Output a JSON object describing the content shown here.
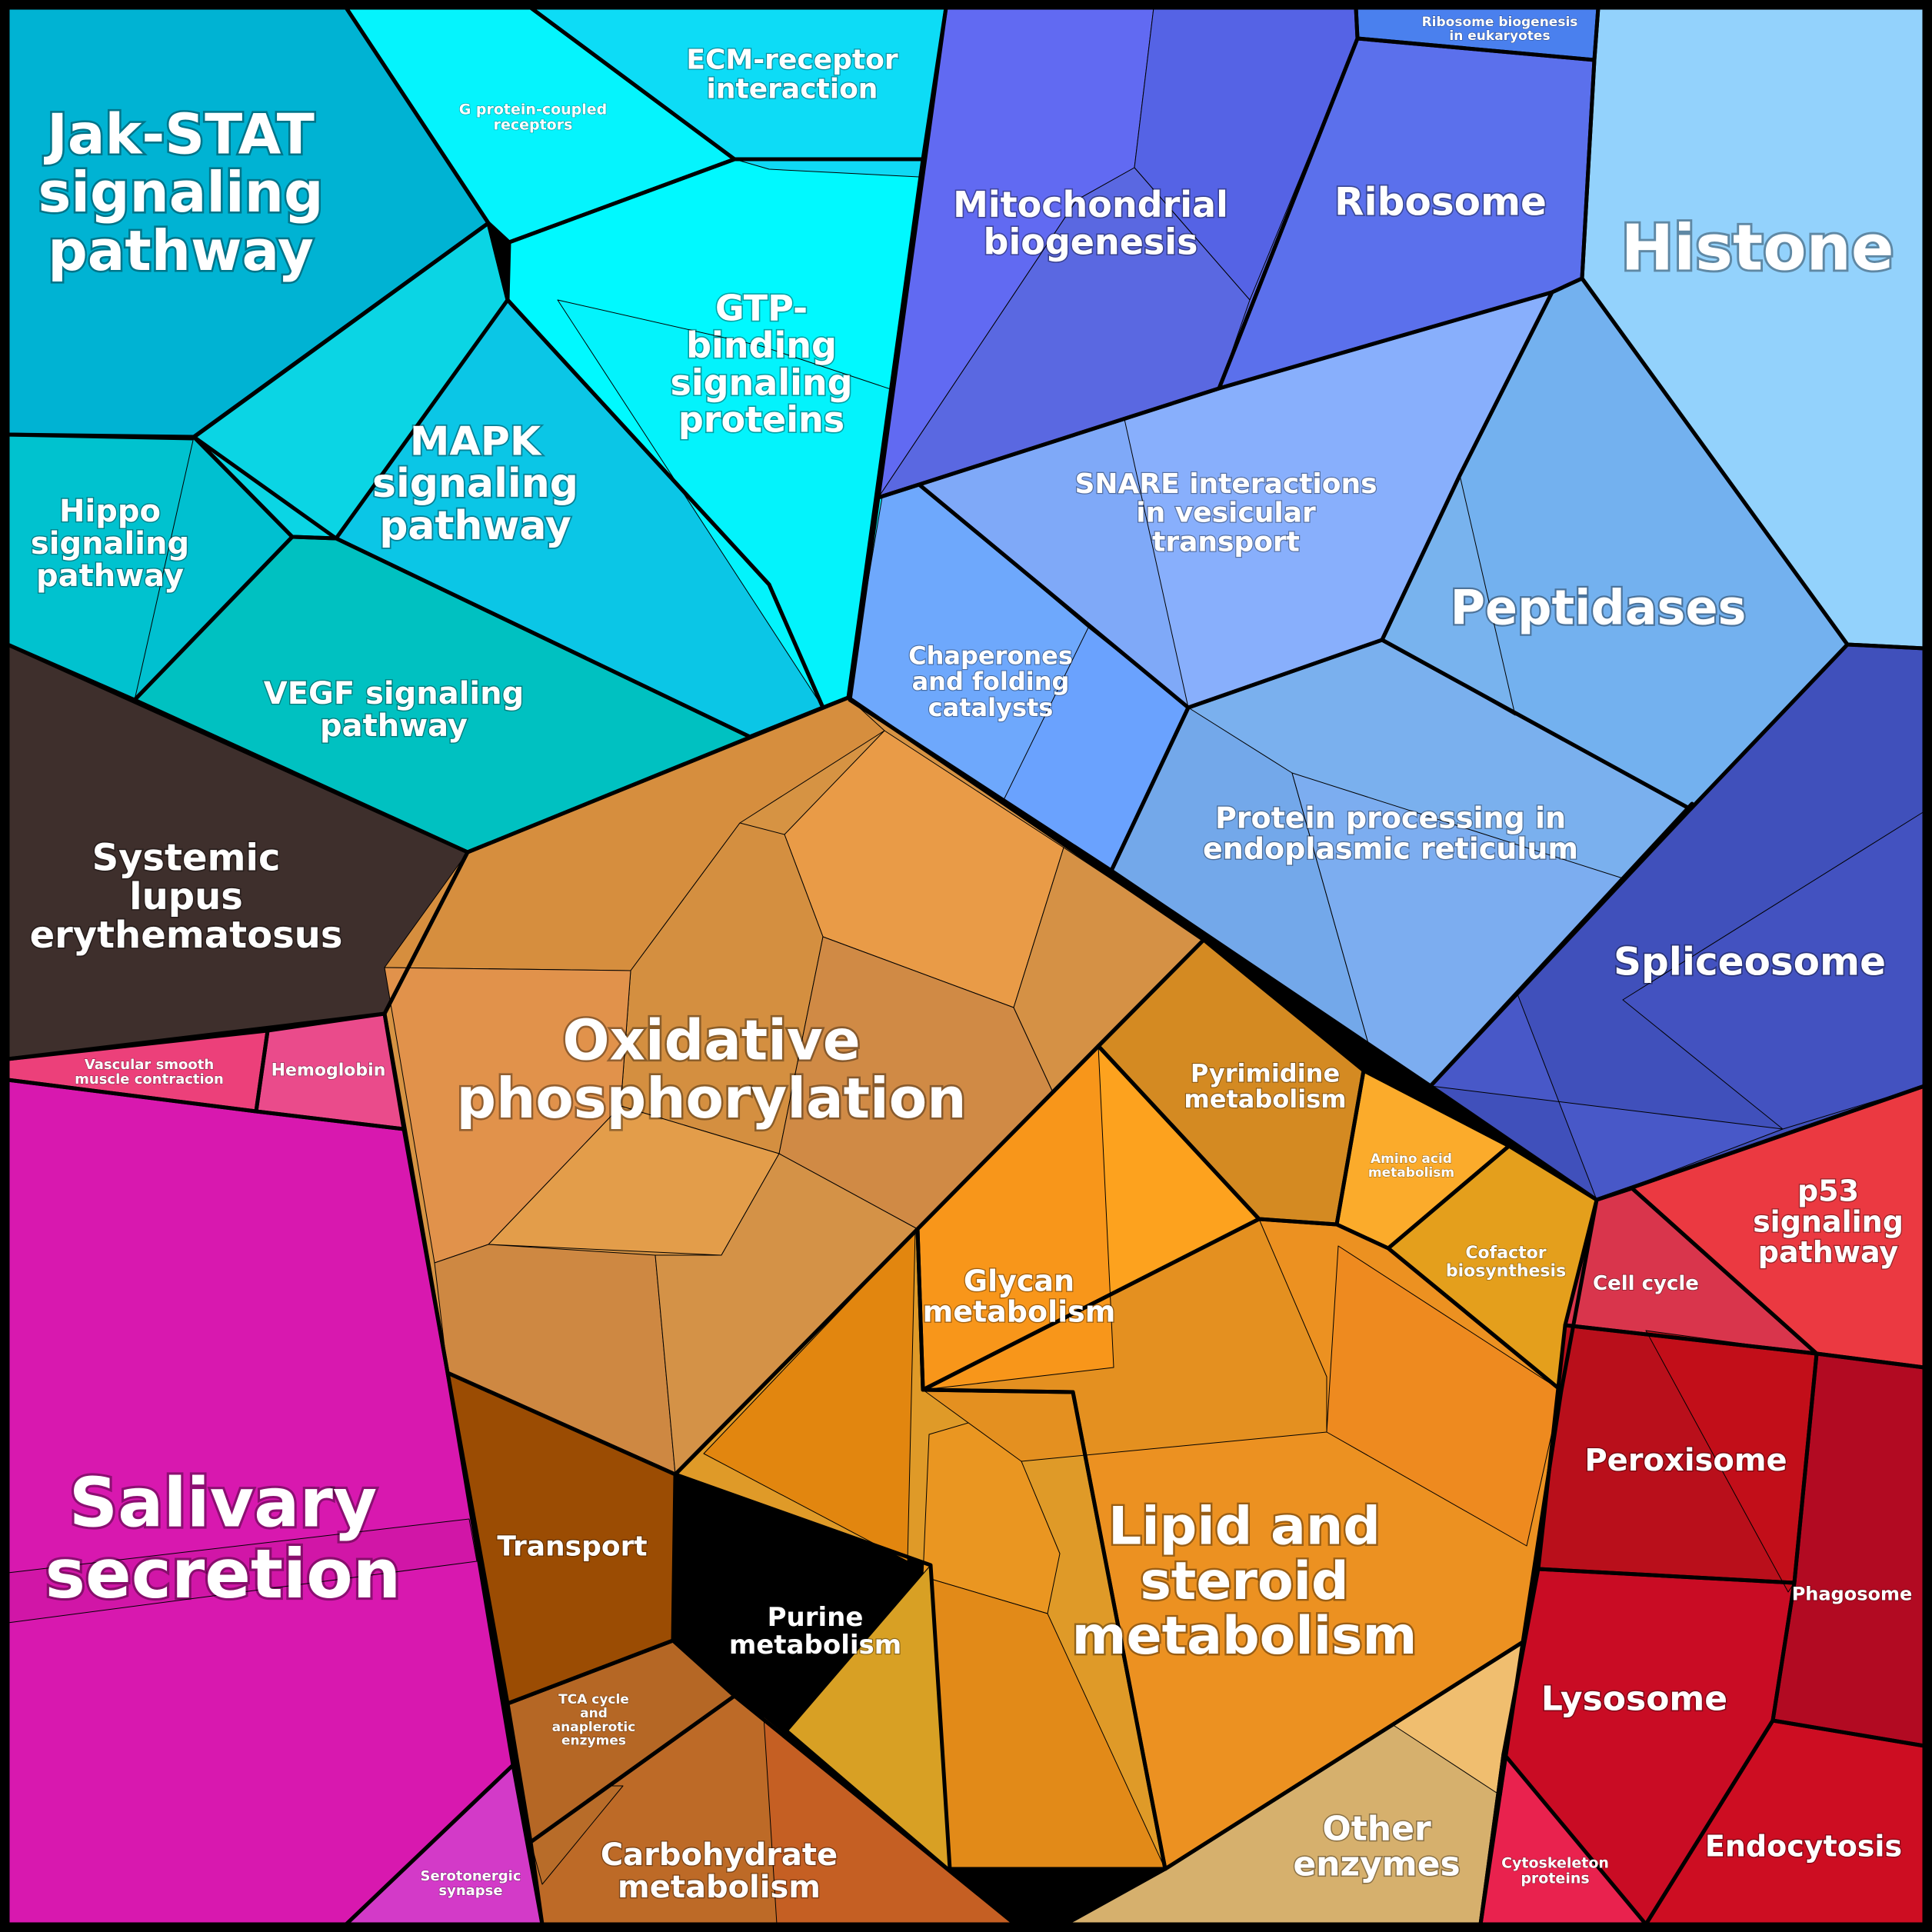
{
  "cells": [
    {
      "name": "jak-stat",
      "label": [
        "Jak-STAT",
        "signaling",
        "pathway"
      ],
      "color": "#00b3d3"
    },
    {
      "name": "g-protein",
      "label": [
        "G protein-coupled",
        "receptors"
      ],
      "color": "#05f4fd"
    },
    {
      "name": "ecm-receptor",
      "label": [
        "ECM-receptor",
        "interaction"
      ],
      "color": "#0ddcf6"
    },
    {
      "name": "gtp-binding",
      "label": [
        "GTP-",
        "binding",
        "signaling",
        "proteins"
      ],
      "color": "#00f9ff"
    },
    {
      "name": "mapk",
      "label": [
        "MAPK",
        "signaling",
        "pathway"
      ],
      "color": "#0bc6e6"
    },
    {
      "name": "mapk-left",
      "label": [],
      "color": "#0bd5e4"
    },
    {
      "name": "hippo",
      "label": [
        "Hippo",
        "signaling",
        "pathway"
      ],
      "color": "#00c2cf"
    },
    {
      "name": "vegf",
      "label": [
        "VEGF signaling",
        "pathway"
      ],
      "color": "#00c1c1"
    },
    {
      "name": "lupus",
      "label": [
        "Systemic",
        "lupus",
        "erythematosus"
      ],
      "color": "#3e2f2c"
    },
    {
      "name": "vascular",
      "label": [
        "Vascular smooth",
        "muscle contraction"
      ],
      "color": "#ec407a"
    },
    {
      "name": "hemoglobin",
      "label": [
        "Hemoglobin"
      ],
      "color": "#ea4b8b"
    },
    {
      "name": "salivary",
      "label": [
        "Salivary",
        "secretion"
      ],
      "color": "#d818af"
    },
    {
      "name": "serotonergic",
      "label": [
        "Serotonergic",
        "synapse"
      ],
      "color": "#d33ac8"
    },
    {
      "name": "mito",
      "label": [
        "Mitochondrial",
        "biogenesis"
      ],
      "color": "#5d6bec"
    },
    {
      "name": "ribo-euk",
      "label": [
        "Ribosome biogenesis",
        "in eukaryotes"
      ],
      "color": "#4a80ee"
    },
    {
      "name": "ribosome",
      "label": [
        "Ribosome"
      ],
      "color": "#5b70ec"
    },
    {
      "name": "histone",
      "label": [
        "Histone"
      ],
      "color": "#93d2fc"
    },
    {
      "name": "snare",
      "label": [
        "SNARE interactions",
        "in vesicular",
        "transport"
      ],
      "color": "#88affc"
    },
    {
      "name": "chaperones",
      "label": [
        "Chaperones",
        "and folding",
        "catalysts"
      ],
      "color": "#6ea8fc"
    },
    {
      "name": "peptidases",
      "label": [
        "Peptidases"
      ],
      "color": "#73b1ef"
    },
    {
      "name": "protein-er",
      "label": [
        "Protein processing in",
        "endoplasmic reticulum"
      ],
      "color": "#7ab0ee"
    },
    {
      "name": "spliceosome",
      "label": [
        "Spliceosome"
      ],
      "color": "#4050bb"
    },
    {
      "name": "oxphos",
      "label": [
        "Oxidative",
        "phosphorylation"
      ],
      "color": "#d69343"
    },
    {
      "name": "transport",
      "label": [
        "Transport"
      ],
      "color": "#9b4c03"
    },
    {
      "name": "pyrimidine",
      "label": [
        "Pyrimidine",
        "metabolism"
      ],
      "color": "#d48a22"
    },
    {
      "name": "amino-acid",
      "label": [
        "Amino acid",
        "metabolism"
      ],
      "color": "#fbab2b"
    },
    {
      "name": "cofactor",
      "label": [
        "Cofactor",
        "biosynthesis"
      ],
      "color": "#e49f1c"
    },
    {
      "name": "glycan",
      "label": [
        "Glycan",
        "metabolism"
      ],
      "color": "#fda21e"
    },
    {
      "name": "lipid",
      "label": [
        "Lipid and",
        "steroid",
        "metabolism"
      ],
      "color": "#ec9121"
    },
    {
      "name": "purine",
      "label": [
        "Purine",
        "metabolism"
      ],
      "color": "#df9a28"
    },
    {
      "name": "tca",
      "label": [
        "TCA cycle",
        "and",
        "anaplerotic",
        "enzymes"
      ],
      "color": "#b56725"
    },
    {
      "name": "carbohydrate",
      "label": [
        "Carbohydrate",
        "metabolism"
      ],
      "color": "#bd6a27"
    },
    {
      "name": "other-enzymes",
      "label": [
        "Other",
        "enzymes"
      ],
      "color": "#d6b06d"
    },
    {
      "name": "p53",
      "label": [
        "p53",
        "signaling",
        "pathway"
      ],
      "color": "#eb3941"
    },
    {
      "name": "cell-cycle",
      "label": [
        "Cell cycle"
      ],
      "color": "#d9354c"
    },
    {
      "name": "peroxisome",
      "label": [
        "Peroxisome"
      ],
      "color": "#b90f1b"
    },
    {
      "name": "phagosome",
      "label": [
        "Phagosome"
      ],
      "color": "#b20a22"
    },
    {
      "name": "lysosome",
      "label": [
        "Lysosome"
      ],
      "color": "#c90c24"
    },
    {
      "name": "endocytosis",
      "label": [
        "Endocytosis"
      ],
      "color": "#cd0d22"
    },
    {
      "name": "cytoskeleton",
      "label": [
        "Cytoskeleton",
        "proteins"
      ],
      "color": "#e9224e"
    }
  ],
  "subcells": [
    {
      "name": "ecm-sub",
      "color": "#0fd9f5"
    },
    {
      "name": "gtp-sub",
      "color": "#03f3fc"
    },
    {
      "name": "mito-sub-1",
      "color": "#616af2"
    },
    {
      "name": "mito-sub-2",
      "color": "#5563e5"
    },
    {
      "name": "mito-sub-3",
      "color": "#5a68e1"
    },
    {
      "name": "snare-sub",
      "color": "#7fa9f8"
    },
    {
      "name": "chap-sub",
      "color": "#6aa2fe"
    },
    {
      "name": "pept-sub",
      "color": "#78b3ee"
    },
    {
      "name": "er-sub-1",
      "color": "#73a8ea"
    },
    {
      "name": "er-sub-2",
      "color": "#7cadf0"
    },
    {
      "name": "splice-sub-1",
      "color": "#4858c8"
    },
    {
      "name": "splice-sub-2",
      "color": "#4352c0"
    },
    {
      "name": "ox-1",
      "color": "#d68e3e"
    },
    {
      "name": "ox-2",
      "color": "#e99b47"
    },
    {
      "name": "ox-3",
      "color": "#d48f40"
    },
    {
      "name": "ox-4",
      "color": "#e39d4a"
    },
    {
      "name": "ox-5",
      "color": "#e1924b"
    },
    {
      "name": "ox-6",
      "color": "#d08a45"
    },
    {
      "name": "ox-7",
      "color": "#ce8842"
    },
    {
      "name": "ox-8",
      "color": "#d49247"
    },
    {
      "name": "ox-9",
      "color": "#d59145"
    },
    {
      "name": "lip-1",
      "color": "#ea9621"
    },
    {
      "name": "lip-2",
      "color": "#ee8a1f"
    },
    {
      "name": "lip-3",
      "color": "#e28a18"
    },
    {
      "name": "lip-4",
      "color": "#e49020"
    },
    {
      "name": "glyc-sub",
      "color": "#e2860f"
    },
    {
      "name": "glyc-sub-2",
      "color": "#f8961a"
    },
    {
      "name": "pur-sub",
      "color": "#d8a024"
    },
    {
      "name": "carb-sub",
      "color": "#c55f23"
    },
    {
      "name": "tca-sub",
      "color": "#b86c29"
    },
    {
      "name": "oth-sub",
      "color": "#f0be6f"
    },
    {
      "name": "sal-sub",
      "color": "#d116a7"
    },
    {
      "name": "hippo-sub",
      "color": "#00c0d0"
    },
    {
      "name": "perox-sub",
      "color": "#c20e19"
    }
  ]
}
